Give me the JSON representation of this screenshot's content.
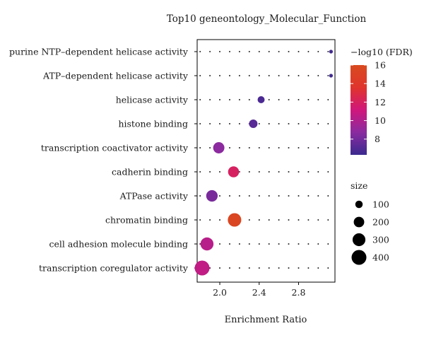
{
  "chart_data": {
    "type": "scatter",
    "title": "Top10 geneontology_Molecular_Function",
    "xlabel": "Enrichment Ratio",
    "ylabel": "",
    "xlim": [
      1.77,
      3.17
    ],
    "x_ticks": [
      "2.0",
      "2.4",
      "2.8"
    ],
    "x_tick_values": [
      2.0,
      2.4,
      2.8
    ],
    "grid": "dotted",
    "categories": [
      "purine NTP–dependent helicase activity",
      "ATP–dependent helicase activity",
      "helicase activity",
      "histone binding",
      "transcription coactivator activity",
      "cadherin binding",
      "ATPase activity",
      "chromatin binding",
      "cell adhesion molecule binding",
      "transcription coregulator activity"
    ],
    "points": [
      {
        "term": "purine NTP–dependent helicase activity",
        "x": 3.13,
        "neg_log10_fdr": 6.5,
        "size": 25
      },
      {
        "term": "ATP–dependent helicase activity",
        "x": 3.13,
        "neg_log10_fdr": 6.5,
        "size": 25
      },
      {
        "term": "helicase activity",
        "x": 2.42,
        "neg_log10_fdr": 6.8,
        "size": 90
      },
      {
        "term": "histone binding",
        "x": 2.34,
        "neg_log10_fdr": 7.2,
        "size": 130
      },
      {
        "term": "transcription coactivator activity",
        "x": 1.99,
        "neg_log10_fdr": 8.8,
        "size": 230
      },
      {
        "term": "cadherin binding",
        "x": 2.14,
        "neg_log10_fdr": 12.0,
        "size": 220
      },
      {
        "term": "ATPase activity",
        "x": 1.92,
        "neg_log10_fdr": 8.2,
        "size": 240
      },
      {
        "term": "chromatin binding",
        "x": 2.15,
        "neg_log10_fdr": 15.6,
        "size": 330
      },
      {
        "term": "cell adhesion molecule binding",
        "x": 1.87,
        "neg_log10_fdr": 10.3,
        "size": 310
      },
      {
        "term": "transcription coregulator activity",
        "x": 1.82,
        "neg_log10_fdr": 10.6,
        "size": 400
      }
    ],
    "color_legend": {
      "title": "−log10 (FDR)",
      "ticks": [
        "8",
        "10",
        "12",
        "14",
        "16"
      ],
      "tick_values": [
        8,
        10,
        12,
        14,
        16
      ],
      "range": [
        6.3,
        16
      ],
      "colors": [
        "#3b2a8f",
        "#8a2ba0",
        "#d0177c",
        "#e0342c",
        "#d84a1f"
      ],
      "position": "top-right"
    },
    "size_legend": {
      "title": "size",
      "entries": [
        "100",
        "200",
        "300",
        "400"
      ],
      "values": [
        100,
        200,
        300,
        400
      ],
      "position": "right"
    },
    "point_colors": {
      "low": "#3b2a8f",
      "mid": "#8a2ba0",
      "high": "#d84a1f"
    }
  }
}
